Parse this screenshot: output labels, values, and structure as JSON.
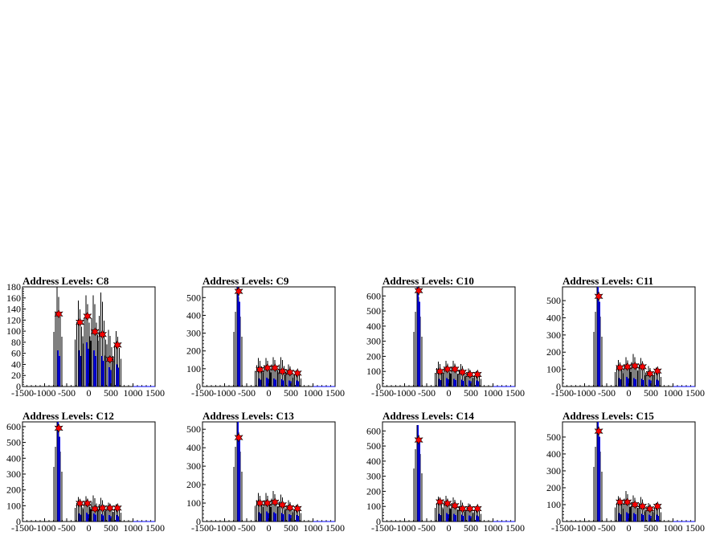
{
  "chart_data": [
    {
      "type": "histogram",
      "title": "Address Levels: C8",
      "xlim": [
        -1500,
        1500
      ],
      "ylim": [
        0,
        180
      ],
      "x_ticks": [
        -1500,
        -1000,
        -500,
        0,
        500,
        1000,
        1500
      ],
      "y_ticks": [
        0,
        20,
        40,
        60,
        80,
        100,
        120,
        140,
        160,
        180
      ],
      "peaks": [
        {
          "x": -680,
          "black": 180,
          "blue": 65,
          "star": 131
        },
        {
          "x": -200,
          "black": 155,
          "blue": 65,
          "star": 116
        },
        {
          "x": -30,
          "black": 165,
          "blue": 80,
          "star": 127
        },
        {
          "x": 140,
          "black": 165,
          "blue": 65,
          "star": 99
        },
        {
          "x": 310,
          "black": 170,
          "blue": 55,
          "star": 94
        },
        {
          "x": 480,
          "black": 102,
          "blue": 35,
          "star": 49
        },
        {
          "x": 650,
          "black": 100,
          "blue": 40,
          "star": 75
        }
      ]
    },
    {
      "type": "histogram",
      "title": "Address Levels: C9",
      "xlim": [
        -1500,
        1500
      ],
      "ylim": [
        0,
        560
      ],
      "x_ticks": [
        -1500,
        -1000,
        -500,
        0,
        500,
        1000,
        1500
      ],
      "y_ticks": [
        0,
        100,
        200,
        300,
        400,
        500
      ],
      "peaks": [
        {
          "x": -680,
          "black": 560,
          "blue": 560,
          "star": 535
        },
        {
          "x": -200,
          "black": 160,
          "blue": 45,
          "star": 95
        },
        {
          "x": -30,
          "black": 160,
          "blue": 50,
          "star": 105
        },
        {
          "x": 140,
          "black": 165,
          "blue": 45,
          "star": 105
        },
        {
          "x": 310,
          "black": 165,
          "blue": 40,
          "star": 85
        },
        {
          "x": 480,
          "black": 125,
          "blue": 35,
          "star": 80
        },
        {
          "x": 650,
          "black": 90,
          "blue": 35,
          "star": 75
        }
      ]
    },
    {
      "type": "histogram",
      "title": "Address Levels: C10",
      "xlim": [
        -1500,
        1500
      ],
      "ylim": [
        0,
        660
      ],
      "x_ticks": [
        -1500,
        -1000,
        -500,
        0,
        500,
        1000,
        1500
      ],
      "y_ticks": [
        0,
        100,
        200,
        300,
        400,
        500,
        600
      ],
      "peaks": [
        {
          "x": -680,
          "black": 660,
          "blue": 660,
          "star": 635
        },
        {
          "x": -200,
          "black": 165,
          "blue": 50,
          "star": 100
        },
        {
          "x": -30,
          "black": 170,
          "blue": 55,
          "star": 115
        },
        {
          "x": 140,
          "black": 170,
          "blue": 50,
          "star": 115
        },
        {
          "x": 310,
          "black": 150,
          "blue": 45,
          "star": 95
        },
        {
          "x": 480,
          "black": 120,
          "blue": 40,
          "star": 80
        },
        {
          "x": 650,
          "black": 100,
          "blue": 40,
          "star": 80
        }
      ]
    },
    {
      "type": "histogram",
      "title": "Address Levels: C11",
      "xlim": [
        -1500,
        1500
      ],
      "ylim": [
        0,
        580
      ],
      "x_ticks": [
        -1500,
        -1000,
        -500,
        0,
        500,
        1000,
        1500
      ],
      "y_ticks": [
        0,
        100,
        200,
        300,
        400,
        500
      ],
      "peaks": [
        {
          "x": -680,
          "black": 580,
          "blue": 580,
          "star": 525
        },
        {
          "x": -200,
          "black": 155,
          "blue": 50,
          "star": 110
        },
        {
          "x": -30,
          "black": 170,
          "blue": 55,
          "star": 115
        },
        {
          "x": 140,
          "black": 190,
          "blue": 50,
          "star": 120
        },
        {
          "x": 310,
          "black": 165,
          "blue": 45,
          "star": 115
        },
        {
          "x": 480,
          "black": 120,
          "blue": 40,
          "star": 75
        },
        {
          "x": 650,
          "black": 110,
          "blue": 40,
          "star": 90
        }
      ]
    },
    {
      "type": "histogram",
      "title": "Address Levels: C12",
      "xlim": [
        -1500,
        1500
      ],
      "ylim": [
        0,
        630
      ],
      "x_ticks": [
        -1500,
        -1000,
        -500,
        0,
        500,
        1000,
        1500
      ],
      "y_ticks": [
        0,
        100,
        200,
        300,
        400,
        500,
        600
      ],
      "peaks": [
        {
          "x": -680,
          "black": 630,
          "blue": 630,
          "star": 590
        },
        {
          "x": -200,
          "black": 155,
          "blue": 50,
          "star": 115
        },
        {
          "x": -30,
          "black": 160,
          "blue": 55,
          "star": 115
        },
        {
          "x": 140,
          "black": 165,
          "blue": 50,
          "star": 80
        },
        {
          "x": 310,
          "black": 150,
          "blue": 45,
          "star": 85
        },
        {
          "x": 480,
          "black": 120,
          "blue": 40,
          "star": 85
        },
        {
          "x": 650,
          "black": 110,
          "blue": 40,
          "star": 85
        }
      ]
    },
    {
      "type": "histogram",
      "title": "Address Levels: C13",
      "xlim": [
        -1500,
        1500
      ],
      "ylim": [
        0,
        540
      ],
      "x_ticks": [
        -1500,
        -1000,
        -500,
        0,
        500,
        1000,
        1500
      ],
      "y_ticks": [
        0,
        100,
        200,
        300,
        400,
        500
      ],
      "peaks": [
        {
          "x": -680,
          "black": 540,
          "blue": 540,
          "star": 455
        },
        {
          "x": -200,
          "black": 155,
          "blue": 50,
          "star": 100
        },
        {
          "x": -30,
          "black": 155,
          "blue": 55,
          "star": 100
        },
        {
          "x": 140,
          "black": 165,
          "blue": 50,
          "star": 105
        },
        {
          "x": 310,
          "black": 145,
          "blue": 45,
          "star": 90
        },
        {
          "x": 480,
          "black": 115,
          "blue": 40,
          "star": 75
        },
        {
          "x": 650,
          "black": 90,
          "blue": 35,
          "star": 70
        }
      ]
    },
    {
      "type": "histogram",
      "title": "Address Levels: C14",
      "xlim": [
        -1500,
        1500
      ],
      "ylim": [
        0,
        660
      ],
      "x_ticks": [
        -1500,
        -1000,
        -500,
        0,
        500,
        1000,
        1500
      ],
      "y_ticks": [
        0,
        100,
        200,
        300,
        400,
        500,
        600
      ],
      "peaks": [
        {
          "x": -680,
          "black": 640,
          "blue": 640,
          "star": 540
        },
        {
          "x": -200,
          "black": 165,
          "blue": 50,
          "star": 130
        },
        {
          "x": -30,
          "black": 170,
          "blue": 55,
          "star": 120
        },
        {
          "x": 140,
          "black": 160,
          "blue": 50,
          "star": 105
        },
        {
          "x": 310,
          "black": 140,
          "blue": 45,
          "star": 85
        },
        {
          "x": 480,
          "black": 120,
          "blue": 40,
          "star": 85
        },
        {
          "x": 650,
          "black": 100,
          "blue": 40,
          "star": 85
        }
      ]
    },
    {
      "type": "histogram",
      "title": "Address Levels: C15",
      "xlim": [
        -1500,
        1500
      ],
      "ylim": [
        0,
        590
      ],
      "x_ticks": [
        -1500,
        -1000,
        -500,
        0,
        500,
        1000,
        1500
      ],
      "y_ticks": [
        0,
        100,
        200,
        300,
        400,
        500
      ],
      "peaks": [
        {
          "x": -680,
          "black": 590,
          "blue": 590,
          "star": 535
        },
        {
          "x": -200,
          "black": 150,
          "blue": 50,
          "star": 115
        },
        {
          "x": -30,
          "black": 180,
          "blue": 55,
          "star": 115
        },
        {
          "x": 140,
          "black": 155,
          "blue": 50,
          "star": 100
        },
        {
          "x": 310,
          "black": 145,
          "blue": 45,
          "star": 90
        },
        {
          "x": 480,
          "black": 110,
          "blue": 40,
          "star": 75
        },
        {
          "x": 650,
          "black": 110,
          "blue": 40,
          "star": 90
        }
      ]
    }
  ],
  "colors": {
    "histogram_primary": "#000000",
    "histogram_secondary": "#0000ff",
    "marker_fill": "#ff0000",
    "marker_outline": "#000000",
    "axis": "#000000",
    "background": "#ffffff"
  }
}
